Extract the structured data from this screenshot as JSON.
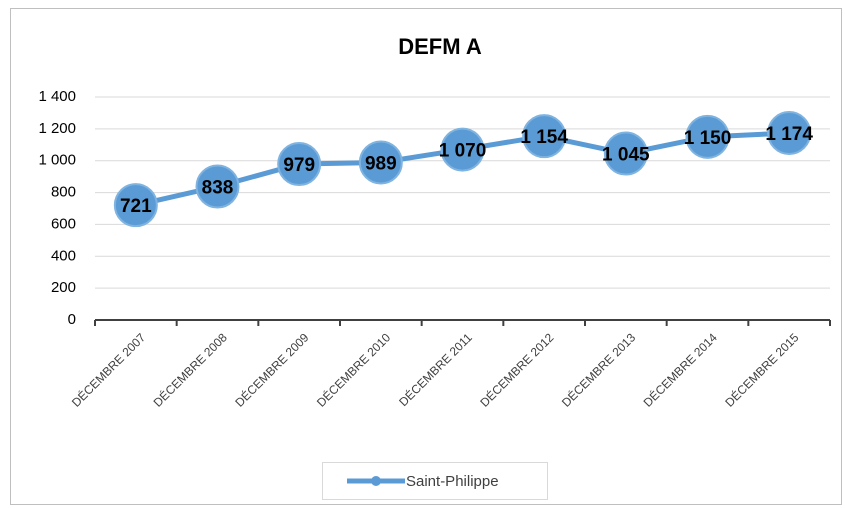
{
  "chart_data": {
    "type": "line",
    "title": "DEFM A",
    "categories": [
      "DÉCEMBRE 2007",
      "DÉCEMBRE 2008",
      "DÉCEMBRE 2009",
      "DÉCEMBRE 2010",
      "DÉCEMBRE 2011",
      "DÉCEMBRE 2012",
      "DÉCEMBRE 2013",
      "DÉCEMBRE 2014",
      "DÉCEMBRE 2015"
    ],
    "series": [
      {
        "name": "Saint-Philippe",
        "color": "#5b9bd5",
        "values": [
          721,
          838,
          979,
          989,
          1070,
          1154,
          1045,
          1150,
          1174
        ],
        "value_labels": [
          "721",
          "838",
          "979",
          "989",
          "1 070",
          "1 154",
          "1 045",
          "1 150",
          "1 174"
        ]
      }
    ],
    "ylim": [
      0,
      1400
    ],
    "yticks": [
      0,
      200,
      400,
      600,
      800,
      {
        "value": 1000,
        "label": "1 000"
      },
      {
        "value": 1200,
        "label": "1 200"
      },
      {
        "value": 1400,
        "label": "1 400"
      }
    ],
    "grid": true,
    "legend": "bottom"
  }
}
